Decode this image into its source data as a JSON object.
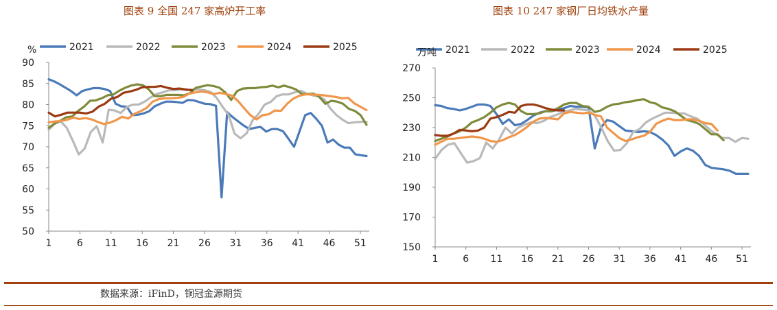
{
  "source_note": "数据来源：iFinD，铜冠金源期货",
  "colors": {
    "2021": "#4a7ab8",
    "2022": "#b9b9b9",
    "2023": "#7f8a3a",
    "2024": "#f0964a",
    "2025": "#9b3a12"
  },
  "chart_data": [
    {
      "type": "line",
      "title": "图表 9 全国 247 家高炉开工率",
      "ylabel": "%",
      "ylim": [
        50,
        90
      ],
      "yticks": [
        "50",
        "55",
        "60",
        "65",
        "70",
        "75",
        "80",
        "85",
        "90"
      ],
      "xlim": [
        1,
        52
      ],
      "xticks": [
        "1",
        "6",
        "11",
        "16",
        "21",
        "26",
        "31",
        "36",
        "41",
        "46",
        "51"
      ],
      "series": [
        {
          "name": "2021",
          "values": [
            86,
            85.5,
            84.8,
            84,
            83.2,
            82.2,
            83.2,
            83.6,
            83.9,
            83.9,
            83.7,
            83.2,
            80.2,
            79.6,
            79.5,
            77.5,
            77.6,
            77.9,
            78.4,
            79.6,
            80.2,
            80.7,
            80.7,
            80.6,
            80.4,
            81.1,
            81,
            80.6,
            80.2,
            80.1,
            79.7,
            58,
            78.2,
            77,
            76,
            75,
            74.2,
            74.5,
            74.7,
            73.6,
            74.2,
            74.2,
            73.7,
            71.9,
            70,
            73.7,
            77.5,
            78,
            76.6,
            75,
            71,
            71.7,
            70.5,
            69.8,
            69.8,
            68.2,
            68,
            67.8
          ]
        },
        {
          "name": "2022",
          "values": [
            74,
            75.5,
            76,
            74.5,
            71.5,
            68.2,
            69.6,
            73.5,
            74.9,
            71,
            78.8,
            78.6,
            78,
            79.4,
            80,
            80,
            80.7,
            81.7,
            82.5,
            82.9,
            83.4,
            83.4,
            83.6,
            83.4,
            83.6,
            83.6,
            83.4,
            83,
            81.6,
            79.5,
            77.5,
            73.1,
            72,
            73.2,
            76.3,
            77.8,
            80,
            80.6,
            82,
            82.4,
            82.4,
            82.9,
            83.3,
            82.6,
            82.2,
            81.9,
            81.2,
            79,
            77.5,
            76.4,
            75.6,
            75.8,
            75.9,
            75.9
          ]
        },
        {
          "name": "2023",
          "values": [
            74.5,
            75.5,
            76.2,
            77,
            77.2,
            78.5,
            79.5,
            80.9,
            81,
            81.5,
            82.2,
            82.4,
            83.3,
            84,
            84.5,
            84.8,
            84.6,
            83.6,
            82,
            82,
            82.3,
            82.3,
            82.3,
            82.2,
            82.7,
            84,
            84.3,
            84.6,
            84.4,
            84,
            82.9,
            81.1,
            83.2,
            83.8,
            83.9,
            83.9,
            84.1,
            84.2,
            84.5,
            84.1,
            84.5,
            84.1,
            83.6,
            82.5,
            82.5,
            82.6,
            81.8,
            80.2,
            80.9,
            80.7,
            80.2,
            79,
            78.5,
            77.5,
            75.2
          ]
        },
        {
          "name": "2024",
          "values": [
            75.8,
            76,
            76.1,
            76.4,
            76.9,
            76.6,
            76.8,
            76.5,
            75.9,
            75.4,
            75.7,
            76.3,
            77.1,
            76.7,
            77.8,
            78.4,
            79.2,
            80.7,
            81.3,
            81.5,
            81.5,
            81.6,
            81.8,
            82.6,
            82.9,
            83.1,
            82.9,
            82.5,
            82.8,
            82.5,
            82.1,
            80.8,
            79.1,
            77.5,
            76.5,
            77.5,
            77.7,
            78.6,
            78.5,
            80.2,
            81.4,
            82.1,
            82.4,
            82.4,
            82.3,
            82.2,
            82,
            81.8,
            81.5,
            81.6,
            80.3,
            79.5,
            78.7
          ]
        },
        {
          "name": "2025",
          "values": [
            78.1,
            77.2,
            77.6,
            78.1,
            78.1,
            78.1,
            77.9,
            78.3,
            79.5,
            80.2,
            81.4,
            81.8,
            82.8,
            83.1,
            83.5,
            84.1,
            84.2,
            84.2,
            84.4,
            84,
            83.7,
            83.8,
            83.6,
            83.4
          ]
        }
      ]
    },
    {
      "type": "line",
      "title": "图表 10 247 家钢厂日均铁水产量",
      "ylabel": "万吨",
      "ylim": [
        150,
        270
      ],
      "yticks": [
        "150",
        "170",
        "190",
        "210",
        "230",
        "250",
        "270"
      ],
      "xlim": [
        1,
        52
      ],
      "xticks": [
        "1",
        "6",
        "11",
        "16",
        "21",
        "26",
        "31",
        "36",
        "41",
        "46",
        "51"
      ],
      "series": [
        {
          "name": "2021",
          "values": [
            245,
            244.5,
            243,
            242.5,
            241.5,
            242.5,
            244,
            245.5,
            245.5,
            244.5,
            239,
            232.5,
            235.5,
            231.5,
            232.5,
            235,
            238,
            240,
            241,
            241,
            242,
            243,
            244.5,
            244,
            244,
            243.5,
            216,
            230,
            235,
            234,
            231,
            228,
            227.5,
            227,
            227.5,
            227,
            225,
            222,
            218,
            211,
            214,
            216,
            214.5,
            211,
            205,
            203,
            202.5,
            202,
            201,
            199,
            199,
            199
          ]
        },
        {
          "name": "2022",
          "values": [
            209,
            215,
            218.5,
            219.5,
            213,
            206.5,
            207.5,
            209.5,
            220,
            216,
            222,
            230,
            226,
            230,
            232,
            233.5,
            233,
            234.5,
            237,
            238.5,
            240.5,
            241.5,
            242.5,
            242,
            241.5,
            238,
            230,
            221,
            214.5,
            215,
            219.5,
            227,
            229,
            233.5,
            236,
            238,
            240,
            240,
            239.5,
            239.5,
            237.5,
            236,
            232.5,
            228.5,
            225.5,
            223,
            223,
            220.5,
            223,
            222.5
          ]
        },
        {
          "name": "2023",
          "values": [
            221,
            222.5,
            224,
            226,
            227.5,
            230,
            233.5,
            235,
            237,
            240,
            243.5,
            245.5,
            246.5,
            245.5,
            241,
            239,
            239,
            239.5,
            241,
            241,
            243,
            245.5,
            246.5,
            246.5,
            244.5,
            244,
            240.5,
            241.5,
            244,
            245.5,
            246,
            247,
            247.5,
            248.5,
            249,
            247,
            246,
            243.5,
            242.5,
            241,
            238,
            235,
            234,
            232.5,
            229,
            225.5,
            225.5,
            221.5
          ]
        },
        {
          "name": "2024",
          "values": [
            218.5,
            220.5,
            222.5,
            222.5,
            223,
            223.5,
            224,
            223.5,
            222.5,
            221,
            220.5,
            221.5,
            223.5,
            225,
            227.5,
            230.5,
            234,
            236,
            236.5,
            236,
            235.5,
            239.5,
            240.5,
            240,
            239.5,
            240,
            238.5,
            237.5,
            230,
            226.5,
            223,
            221,
            222,
            223.5,
            224.5,
            227,
            232.5,
            234.5,
            236,
            235,
            235,
            235.5,
            235.5,
            234.5,
            233,
            232.5,
            228
          ]
        },
        {
          "name": "2025",
          "values": [
            225,
            224.5,
            224.5,
            226,
            228.5,
            228,
            227.5,
            228,
            230,
            236,
            237,
            238.5,
            240.5,
            240,
            244.5,
            245.5,
            245.5,
            244.5,
            243,
            242,
            241.5,
            241.5
          ]
        }
      ]
    }
  ]
}
